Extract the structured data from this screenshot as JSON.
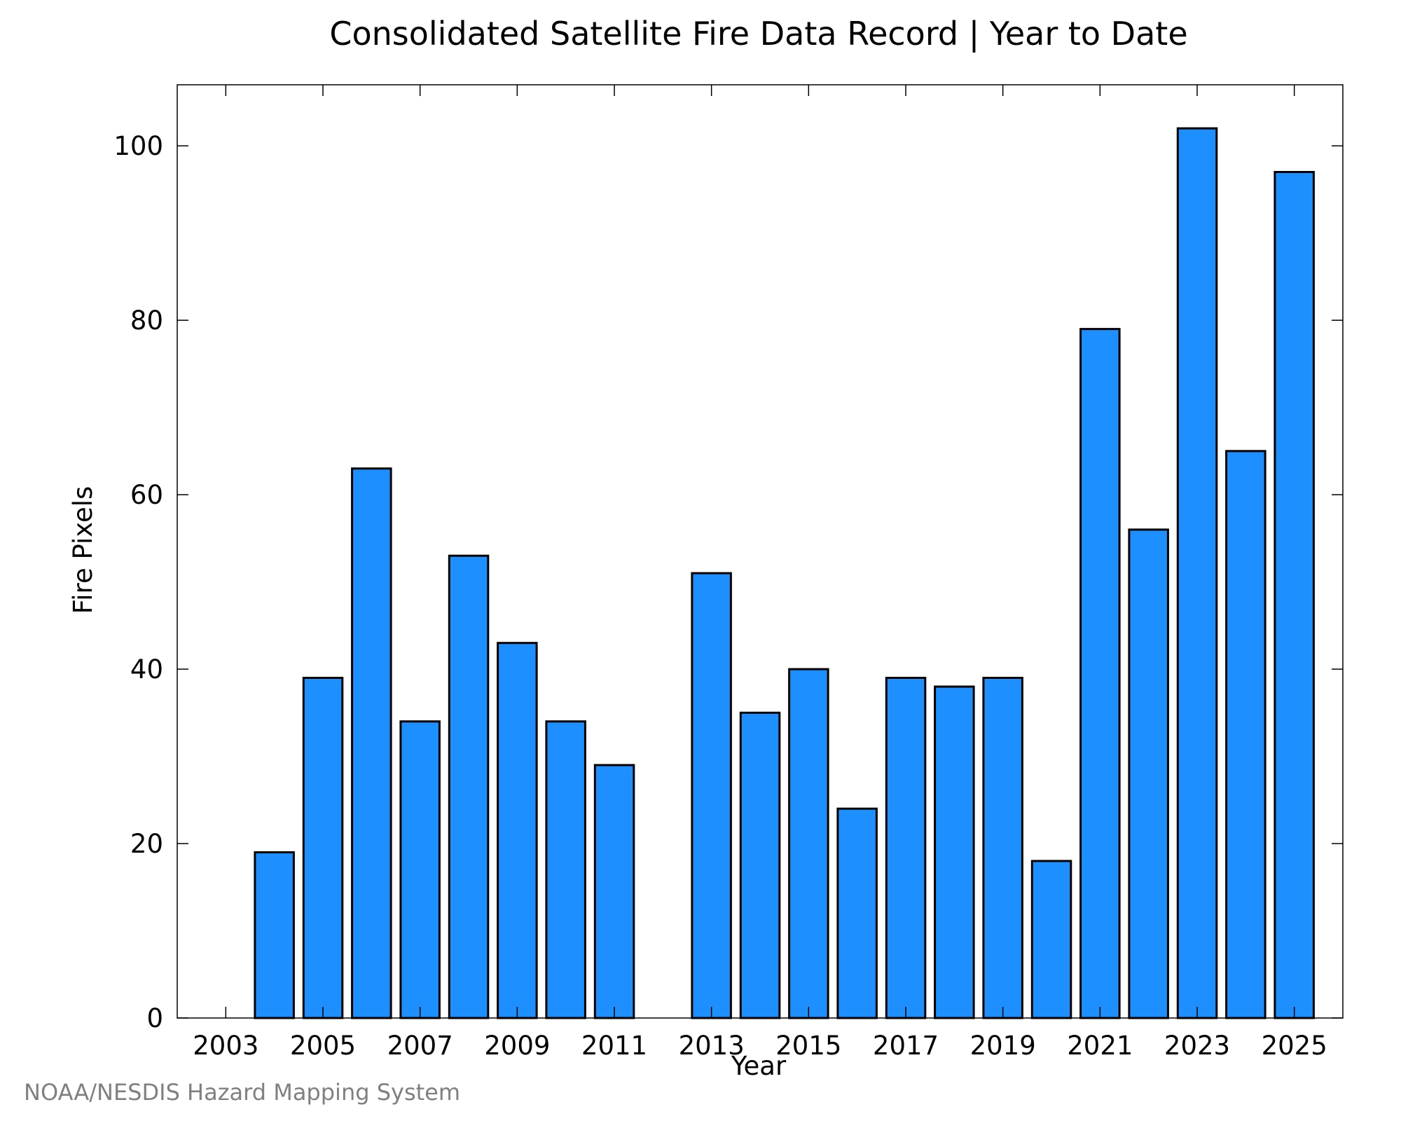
{
  "chart_data": {
    "type": "bar",
    "title": "Consolidated Satellite Fire Data Record | Year to Date",
    "xlabel": "Year",
    "ylabel": "Fire Pixels",
    "categories": [
      2003,
      2004,
      2005,
      2006,
      2007,
      2008,
      2009,
      2010,
      2011,
      2012,
      2013,
      2014,
      2015,
      2016,
      2017,
      2018,
      2019,
      2020,
      2021,
      2022,
      2023,
      2024,
      2025
    ],
    "values": [
      0,
      19,
      39,
      63,
      34,
      53,
      43,
      34,
      29,
      0,
      51,
      35,
      40,
      24,
      39,
      38,
      39,
      18,
      79,
      56,
      102,
      65,
      97
    ],
    "x_tick_labels": [
      "2003",
      "2005",
      "2007",
      "2009",
      "2011",
      "2013",
      "2015",
      "2017",
      "2019",
      "2021",
      "2023",
      "2025"
    ],
    "y_ticks": [
      0,
      20,
      40,
      60,
      80,
      100
    ],
    "ylim": [
      0,
      107
    ],
    "xlim": [
      2002.0,
      2026.0
    ],
    "grid": false,
    "bar_color": "#1E8FFF",
    "credit": "NOAA/NESDIS Hazard Mapping System"
  }
}
